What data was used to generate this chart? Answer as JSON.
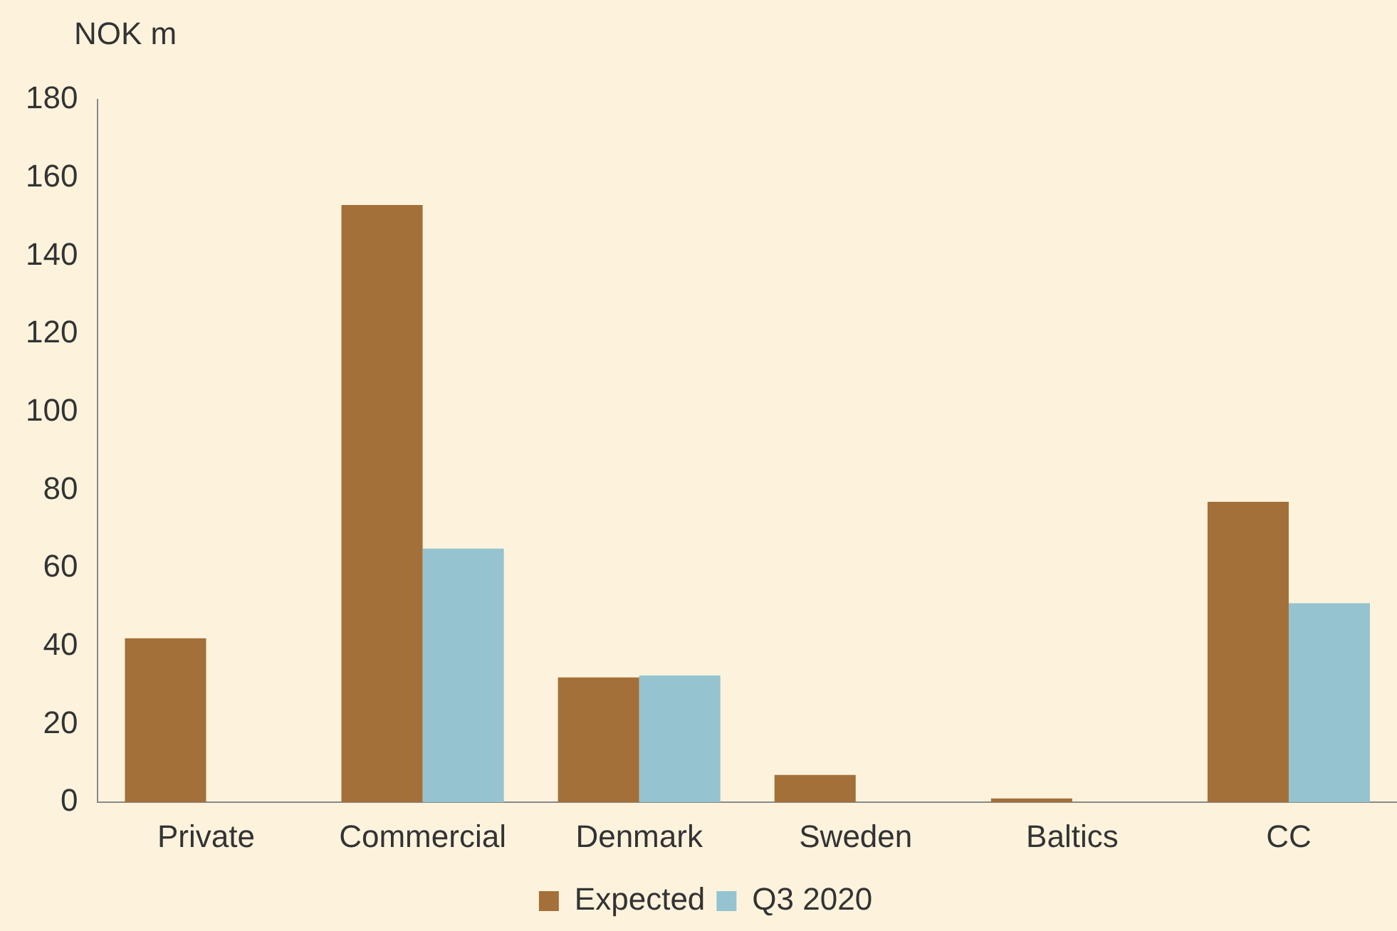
{
  "chart_data": {
    "type": "bar",
    "ylabel": "NOK m",
    "categories": [
      "Private",
      "Commercial",
      "Denmark",
      "Sweden",
      "Baltics",
      "CC"
    ],
    "series": [
      {
        "name": "Expected",
        "color": "#a3703a",
        "values": [
          42,
          153,
          32,
          7,
          1,
          77
        ]
      },
      {
        "name": "Q3 2020",
        "color": "#95c3cf",
        "values": [
          0,
          65,
          32.5,
          0,
          0,
          51
        ]
      }
    ],
    "ylim": [
      0,
      180
    ],
    "yticks": [
      0,
      20,
      40,
      60,
      80,
      100,
      120,
      140,
      160,
      180
    ],
    "grid": false,
    "legend": "bottom"
  }
}
